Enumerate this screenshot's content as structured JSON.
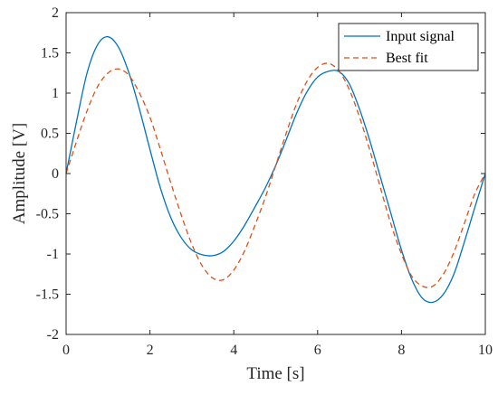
{
  "chart_data": {
    "type": "line",
    "title": "",
    "xlabel": "Time [s]",
    "ylabel": "Amplitude [V]",
    "xlim": [
      0,
      10
    ],
    "ylim": [
      -2,
      2
    ],
    "xticks": [
      0,
      2,
      4,
      6,
      8,
      10
    ],
    "yticks": [
      -2,
      -1.5,
      -1,
      -0.5,
      0,
      0.5,
      1,
      1.5,
      2
    ],
    "xtick_labels": [
      "0",
      "2",
      "4",
      "6",
      "8",
      "10"
    ],
    "ytick_labels": [
      "-2",
      "-1.5",
      "-1",
      "-0.5",
      "0",
      "0.5",
      "1",
      "1.5",
      "2"
    ],
    "grid": false,
    "legend_position": "top-right",
    "series": [
      {
        "name": "Input signal",
        "color": "#0072BD",
        "style": "solid",
        "x": [
          0,
          0.25,
          0.5,
          0.75,
          1.0,
          1.25,
          1.5,
          1.75,
          2.0,
          2.25,
          2.5,
          2.75,
          3.0,
          3.25,
          3.5,
          3.75,
          4.0,
          4.25,
          4.5,
          4.75,
          5.0,
          5.25,
          5.5,
          5.75,
          6.0,
          6.25,
          6.5,
          6.75,
          7.0,
          7.25,
          7.5,
          7.75,
          8.0,
          8.25,
          8.5,
          8.75,
          9.0,
          9.25,
          9.5,
          9.75,
          10.0
        ],
        "y": [
          0,
          0.65,
          1.25,
          1.6,
          1.7,
          1.57,
          1.25,
          0.8,
          0.3,
          -0.18,
          -0.55,
          -0.8,
          -0.95,
          -1.01,
          -1.02,
          -0.97,
          -0.84,
          -0.65,
          -0.42,
          -0.18,
          0.1,
          0.42,
          0.75,
          1.02,
          1.2,
          1.27,
          1.27,
          1.12,
          0.8,
          0.4,
          -0.05,
          -0.5,
          -0.95,
          -1.32,
          -1.55,
          -1.6,
          -1.5,
          -1.25,
          -0.85,
          -0.42,
          0
        ]
      },
      {
        "name": "Best fit",
        "color": "#D95319",
        "style": "dashed",
        "x": [
          0,
          0.25,
          0.5,
          0.75,
          1.0,
          1.25,
          1.5,
          1.75,
          2.0,
          2.25,
          2.5,
          2.75,
          3.0,
          3.25,
          3.5,
          3.75,
          4.0,
          4.25,
          4.5,
          4.75,
          5.0,
          5.25,
          5.5,
          5.75,
          6.0,
          6.25,
          6.5,
          6.75,
          7.0,
          7.25,
          7.5,
          7.75,
          8.0,
          8.25,
          8.5,
          8.75,
          9.0,
          9.25,
          9.5,
          9.75,
          10.0
        ],
        "y": [
          0,
          0.4,
          0.78,
          1.08,
          1.25,
          1.3,
          1.22,
          1.0,
          0.7,
          0.3,
          -0.12,
          -0.52,
          -0.88,
          -1.15,
          -1.3,
          -1.32,
          -1.2,
          -0.97,
          -0.65,
          -0.3,
          0.1,
          0.5,
          0.87,
          1.15,
          1.32,
          1.37,
          1.28,
          1.05,
          0.7,
          0.28,
          -0.18,
          -0.63,
          -1.0,
          -1.28,
          -1.4,
          -1.4,
          -1.25,
          -0.98,
          -0.62,
          -0.25,
          0
        ]
      }
    ]
  }
}
